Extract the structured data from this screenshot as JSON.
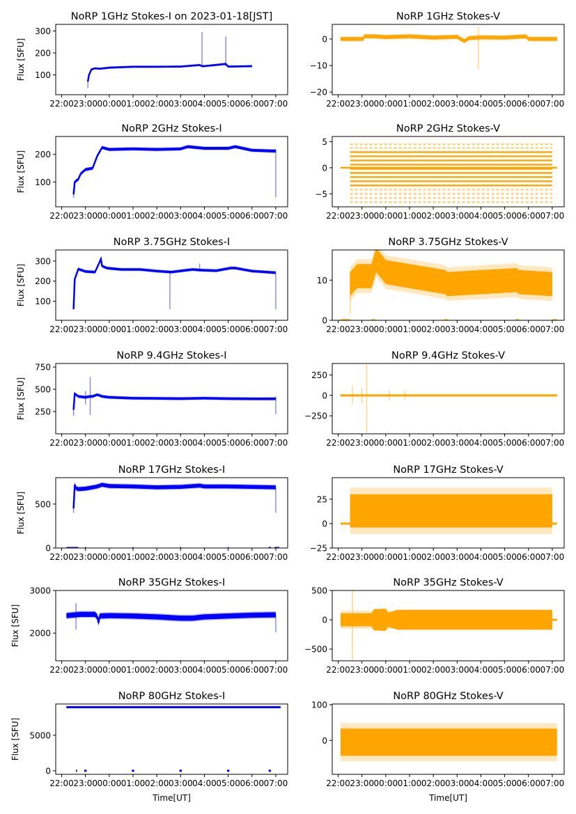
{
  "figure": {
    "x_ticks": [
      "22:00",
      "23:00",
      "00:00",
      "01:00",
      "02:00",
      "03:00",
      "04:00",
      "05:00",
      "06:00",
      "07:00"
    ],
    "x_tick_hours": [
      -2,
      -1,
      0,
      1,
      2,
      3,
      4,
      5,
      6,
      7
    ],
    "x_range_hours": [
      -2.25,
      7.5
    ],
    "xlabel": "Time[UT]",
    "ylabel": "Flux [SFU]",
    "colors": {
      "stokes_i": "#0000ff",
      "stokes_v": "#ffa500"
    }
  },
  "chart_data": [
    {
      "type": "scatter",
      "title": "NoRP 1GHz Stokes-I on 2023-01-18[JST]",
      "column": "left",
      "row": 0,
      "color": "#0000ff",
      "ylabel": "Flux [SFU]",
      "xlabel": "",
      "ylim": [
        10,
        330
      ],
      "yticks": [
        100,
        200,
        300
      ],
      "ytick_labels": [
        "100",
        "200",
        "300"
      ],
      "x_range": [
        -0.9,
        6.0
      ],
      "series": [
        {
          "name": "Stokes-I",
          "x": [
            -0.9,
            -0.85,
            -0.75,
            -0.6,
            -0.4,
            0,
            1,
            2,
            3,
            3.8,
            3.9,
            4.0,
            4.9,
            5.0,
            6.0
          ],
          "y": [
            70,
            100,
            125,
            130,
            128,
            133,
            137,
            137,
            138,
            145,
            140,
            140,
            150,
            138,
            140
          ]
        }
      ],
      "spikes": [
        {
          "x": 3.9,
          "y": [
            140,
            295
          ]
        },
        {
          "x": 4.9,
          "y": [
            140,
            275
          ]
        },
        {
          "x": -0.9,
          "y": [
            40,
            75
          ]
        }
      ],
      "band_halfwidth": 4
    },
    {
      "type": "scatter",
      "title": "NoRP 1GHz Stokes-V",
      "column": "right",
      "row": 0,
      "color": "#ffa500",
      "ylabel": "",
      "xlabel": "",
      "ylim": [
        -21,
        5.5
      ],
      "yticks": [
        -20,
        -10,
        0
      ],
      "ytick_labels": [
        "−20",
        "−10",
        "0"
      ],
      "x_range": [
        -1.9,
        7.2
      ],
      "series": [
        {
          "name": "Stokes-V",
          "x": [
            -1.9,
            -0.95,
            -0.9,
            -0.5,
            0,
            1,
            2,
            3,
            3.3,
            3.5,
            4,
            5,
            5.9,
            6.0,
            7.2
          ],
          "y": [
            0,
            0,
            1,
            1,
            0.7,
            1,
            0.5,
            0.8,
            -0.8,
            0.3,
            0.6,
            0.5,
            1,
            0,
            0
          ]
        }
      ],
      "spikes": [
        {
          "x": 3.9,
          "y": [
            -11.5,
            4.5
          ]
        }
      ],
      "band_halfwidth": 0.7
    },
    {
      "type": "scatter",
      "title": "NoRP 2GHz Stokes-I",
      "column": "left",
      "row": 1,
      "color": "#0000ff",
      "ylabel": "Flux [SFU]",
      "xlabel": "",
      "ylim": [
        10,
        265
      ],
      "yticks": [
        100,
        200
      ],
      "ytick_labels": [
        "100",
        "200"
      ],
      "x_range": [
        -1.5,
        7.0
      ],
      "series": [
        {
          "name": "Stokes-I",
          "x": [
            -1.5,
            -1.45,
            -1.3,
            -1.2,
            -1.0,
            -0.7,
            -0.5,
            -0.4,
            -0.3,
            0,
            1,
            2,
            3,
            3.3,
            4,
            5,
            5.3,
            6,
            7.0
          ],
          "y": [
            55,
            100,
            110,
            130,
            145,
            150,
            195,
            210,
            225,
            218,
            220,
            218,
            220,
            228,
            222,
            222,
            228,
            215,
            212
          ]
        }
      ],
      "spikes": [
        {
          "x": 7.0,
          "y": [
            45,
            220
          ]
        },
        {
          "x": -1.5,
          "y": [
            42,
            75
          ]
        }
      ],
      "band_halfwidth": 5
    },
    {
      "type": "scatter",
      "title": "NoRP 2GHz Stokes-V",
      "column": "right",
      "row": 1,
      "color": "#ffa500",
      "ylabel": "",
      "xlabel": "",
      "ylim": [
        -7.5,
        6
      ],
      "yticks": [
        -5,
        0,
        5
      ],
      "ytick_labels": [
        "−5",
        "0",
        "5"
      ],
      "x_range": [
        -1.9,
        7.2
      ],
      "quantized_levels": [
        -6.6,
        -5.8,
        -5.0,
        -4.2,
        -3.4,
        -2.6,
        -1.8,
        -1.0,
        -0.2,
        0.6,
        1.4,
        2.2,
        3.0,
        3.8,
        4.5
      ],
      "quantized_x_range": [
        -1.5,
        7.0
      ],
      "series": [
        {
          "name": "Stokes-V",
          "x": [
            -1.9,
            7.2
          ],
          "y": [
            0,
            0
          ]
        }
      ],
      "band_halfwidth": 0.12
    },
    {
      "type": "scatter",
      "title": "NoRP 3.75GHz Stokes-I",
      "column": "left",
      "row": 2,
      "color": "#0000ff",
      "ylabel": "Flux [SFU]",
      "xlabel": "",
      "ylim": [
        5,
        355
      ],
      "yticks": [
        100,
        200,
        300
      ],
      "ytick_labels": [
        "100",
        "200",
        "300"
      ],
      "x_range": [
        -1.5,
        7.0
      ],
      "series": [
        {
          "name": "Stokes-I",
          "x": [
            -1.5,
            -1.45,
            -1.3,
            -1.0,
            -0.6,
            -0.5,
            -0.35,
            -0.3,
            -0.1,
            0.5,
            1.3,
            2.0,
            2.6,
            3.5,
            3.8,
            4.5,
            5.1,
            5.3,
            6,
            7.0
          ],
          "y": [
            60,
            210,
            260,
            248,
            245,
            270,
            310,
            275,
            265,
            258,
            258,
            250,
            245,
            258,
            255,
            252,
            265,
            265,
            250,
            242
          ]
        }
      ],
      "spikes": [
        {
          "x": 2.55,
          "y": [
            60,
            245
          ]
        },
        {
          "x": 7.0,
          "y": [
            60,
            240
          ]
        },
        {
          "x": 3.8,
          "y": [
            250,
            288
          ]
        }
      ],
      "band_halfwidth": 6
    },
    {
      "type": "scatter",
      "title": "NoRP 3.75GHz Stokes-V",
      "column": "right",
      "row": 2,
      "color": "#ffa500",
      "ylabel": "",
      "xlabel": "",
      "ylim": [
        0,
        17.5
      ],
      "yticks": [
        0,
        10
      ],
      "ytick_labels": [
        "0",
        "10"
      ],
      "x_range": [
        -1.5,
        7.0
      ],
      "series": [
        {
          "name": "Stokes-V",
          "x": [
            -1.5,
            -1.2,
            -0.6,
            -0.5,
            -0.4,
            0,
            1,
            2.5,
            2.6,
            4,
            5.5,
            5.6,
            7.0
          ],
          "y": [
            9,
            11,
            11,
            13,
            15,
            12,
            11,
            9.5,
            9,
            9.5,
            10,
            9.5,
            9
          ]
        }
      ],
      "spikes": [
        {
          "x": -1.5,
          "y": [
            1.5,
            12
          ]
        }
      ],
      "zero_segments": [
        [
          -1.9,
          -1.5
        ],
        [
          -0.6,
          -0.45
        ],
        [
          2.45,
          2.6
        ],
        [
          5.45,
          5.6
        ],
        [
          7.0,
          7.2
        ]
      ],
      "band_halfwidth": 3
    },
    {
      "type": "scatter",
      "title": "NoRP 9.4GHz Stokes-I",
      "column": "left",
      "row": 3,
      "color": "#0000ff",
      "ylabel": "Flux [SFU]",
      "xlabel": "",
      "ylim": [
        0,
        790
      ],
      "yticks": [
        250,
        500,
        750
      ],
      "ytick_labels": [
        "250",
        "500",
        "750"
      ],
      "x_range": [
        -1.5,
        7.0
      ],
      "series": [
        {
          "name": "Stokes-I",
          "x": [
            -1.5,
            -1.45,
            -1.3,
            -1.0,
            -0.8,
            -0.7,
            -0.5,
            -0.3,
            0,
            1,
            2,
            3,
            4,
            5,
            6,
            7.0
          ],
          "y": [
            270,
            450,
            420,
            410,
            420,
            420,
            440,
            420,
            410,
            400,
            398,
            395,
            400,
            395,
            393,
            393
          ]
        }
      ],
      "spikes": [
        {
          "x": -0.8,
          "y": [
            210,
            640
          ]
        },
        {
          "x": -1.0,
          "y": [
            330,
            480
          ]
        },
        {
          "x": 7.0,
          "y": [
            220,
            420
          ]
        },
        {
          "x": -1.5,
          "y": [
            200,
            350
          ]
        }
      ],
      "band_halfwidth": 14
    },
    {
      "type": "scatter",
      "title": "NoRP 9.4GHz Stokes-V",
      "column": "right",
      "row": 3,
      "color": "#ffa500",
      "ylabel": "",
      "xlabel": "",
      "ylim": [
        -470,
        390
      ],
      "yticks": [
        -250,
        0,
        250
      ],
      "ytick_labels": [
        "−250",
        "0",
        "250"
      ],
      "x_range": [
        -1.9,
        7.2
      ],
      "series": [
        {
          "name": "Stokes-V",
          "x": [
            -1.9,
            7.2
          ],
          "y": [
            0,
            0
          ]
        }
      ],
      "spikes": [
        {
          "x": -0.8,
          "y": [
            -460,
            380
          ]
        },
        {
          "x": -1.4,
          "y": [
            -100,
            120
          ]
        },
        {
          "x": -1.0,
          "y": [
            -90,
            90
          ]
        },
        {
          "x": 0.15,
          "y": [
            -60,
            60
          ]
        },
        {
          "x": 0.8,
          "y": [
            -50,
            50
          ]
        }
      ],
      "band_halfwidth": 12
    },
    {
      "type": "scatter",
      "title": "NoRP 17GHz Stokes-I",
      "column": "left",
      "row": 4,
      "color": "#0000ff",
      "ylabel": "Flux [SFU]",
      "xlabel": "",
      "ylim": [
        0,
        800
      ],
      "yticks": [
        0,
        500
      ],
      "ytick_labels": [
        "0",
        "500"
      ],
      "x_range": [
        -1.5,
        7.0
      ],
      "series": [
        {
          "name": "Stokes-I",
          "x": [
            -1.5,
            -1.45,
            -1.4,
            -1.3,
            -1,
            -0.5,
            -0.3,
            0,
            1,
            2,
            3,
            3.8,
            4,
            5,
            6,
            7.0
          ],
          "y": [
            450,
            720,
            680,
            670,
            675,
            700,
            720,
            705,
            700,
            690,
            695,
            710,
            700,
            700,
            695,
            690
          ]
        }
      ],
      "spikes": [
        {
          "x": 7.0,
          "y": [
            400,
            690
          ]
        },
        {
          "x": -1.5,
          "y": [
            400,
            520
          ]
        }
      ],
      "zero_segments": [
        [
          -1.8,
          -1.3
        ],
        [
          -1.02,
          -0.98
        ],
        [
          0.98,
          1.02
        ],
        [
          2.98,
          3.02
        ],
        [
          4.98,
          5.02
        ],
        [
          6.7,
          6.8
        ],
        [
          6.95,
          7.15
        ]
      ],
      "band_halfwidth": 22
    },
    {
      "type": "scatter",
      "title": "NoRP 17GHz Stokes-V",
      "column": "right",
      "row": 4,
      "color": "#ffa500",
      "ylabel": "",
      "xlabel": "",
      "ylim": [
        -25,
        47
      ],
      "yticks": [
        -25,
        0,
        25
      ],
      "ytick_labels": [
        "−25",
        "0",
        "25"
      ],
      "x_range": [
        -1.5,
        7.0
      ],
      "series": [
        {
          "name": "Stokes-V",
          "x": [
            -1.5,
            7.0
          ],
          "y": [
            13,
            13
          ]
        }
      ],
      "zero_segments": [
        [
          -1.9,
          -1.5
        ],
        [
          7.0,
          7.2
        ]
      ],
      "band_halfwidth": 17
    },
    {
      "type": "scatter",
      "title": "NoRP 35GHz Stokes-I",
      "column": "left",
      "row": 5,
      "color": "#0000ff",
      "ylabel": "Flux [SFU]",
      "xlabel": "",
      "ylim": [
        1350,
        3000
      ],
      "yticks": [
        2000,
        3000
      ],
      "ytick_labels": [
        "2000",
        "3000"
      ],
      "x_range": [
        -1.8,
        7.0
      ],
      "series": [
        {
          "name": "Stokes-I",
          "x": [
            -1.8,
            -1.2,
            -0.6,
            -0.5,
            -0.45,
            -0.4,
            0,
            1,
            2,
            3,
            3.5,
            4,
            5,
            6,
            7.0
          ],
          "y": [
            2410,
            2440,
            2440,
            2380,
            2240,
            2400,
            2410,
            2400,
            2380,
            2350,
            2350,
            2380,
            2400,
            2420,
            2430
          ]
        }
      ],
      "spikes": [
        {
          "x": -1.4,
          "y": [
            2080,
            2700
          ]
        },
        {
          "x": 7.0,
          "y": [
            2020,
            2450
          ]
        }
      ],
      "band_halfwidth": 60
    },
    {
      "type": "scatter",
      "title": "NoRP 35GHz Stokes-V",
      "column": "right",
      "row": 5,
      "color": "#ffa500",
      "ylabel": "",
      "xlabel": "",
      "ylim": [
        -700,
        500
      ],
      "yticks": [
        -500,
        0,
        500
      ],
      "ytick_labels": [
        "−500",
        "0",
        "500"
      ],
      "x_range": [
        -1.9,
        7.0
      ],
      "series": [
        {
          "name": "Stokes-V",
          "x": [
            -1.9,
            7.0
          ],
          "y": [
            0,
            0
          ]
        }
      ],
      "spikes": [
        {
          "x": -1.4,
          "y": [
            -690,
            490
          ]
        }
      ],
      "envelope": {
        "x": [
          -1.9,
          -0.6,
          -0.5,
          0,
          0.1,
          0.5,
          7.0
        ],
        "half": [
          110,
          110,
          180,
          190,
          120,
          170,
          170
        ]
      },
      "zero_segments": [
        [
          7.0,
          7.2
        ]
      ],
      "band_halfwidth": 110
    },
    {
      "type": "scatter",
      "title": "NoRP 80GHz Stokes-I",
      "column": "left",
      "row": 6,
      "color": "#0000ff",
      "ylabel": "Flux [SFU]",
      "xlabel": "Time[UT]",
      "ylim": [
        -500,
        9400
      ],
      "yticks": [
        0,
        5000
      ],
      "ytick_labels": [
        "0",
        "5000"
      ],
      "x_range": [
        -1.8,
        7.2
      ],
      "series": [
        {
          "name": "Stokes-I",
          "x": [
            -1.8,
            7.2
          ],
          "y": [
            8950,
            8950
          ]
        }
      ],
      "zero_segments": [
        [
          -1.4,
          -1.35
        ],
        [
          -1.05,
          -0.95
        ],
        [
          0.95,
          1.05
        ],
        [
          2.95,
          3.05
        ],
        [
          4.95,
          5.05
        ],
        [
          6.7,
          6.8
        ]
      ],
      "band_halfwidth": 130
    },
    {
      "type": "scatter",
      "title": "NoRP 80GHz Stokes-V",
      "column": "right",
      "row": 6,
      "color": "#ffa500",
      "ylabel": "",
      "xlabel": "Time[UT]",
      "ylim": [
        -95,
        102
      ],
      "yticks": [
        0,
        100
      ],
      "ytick_labels": [
        "0",
        "100"
      ],
      "x_range": [
        -1.9,
        7.2
      ],
      "series": [
        {
          "name": "Stokes-V",
          "x": [
            -1.9,
            7.2
          ],
          "y": [
            -5,
            -5
          ]
        }
      ],
      "band_halfwidth": 38
    }
  ]
}
